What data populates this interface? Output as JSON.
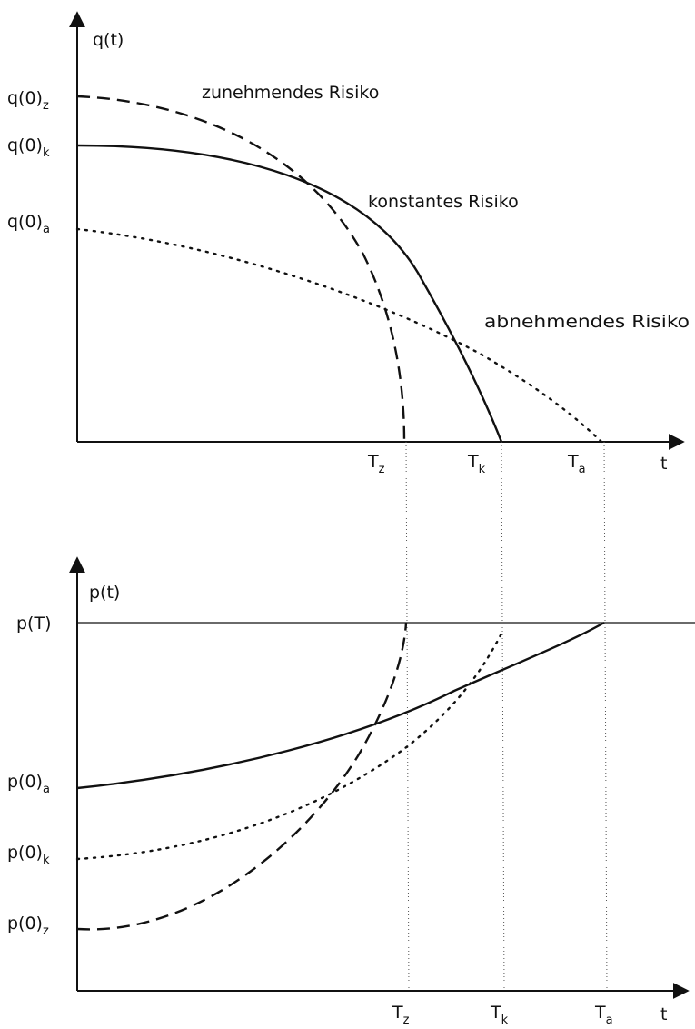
{
  "upper": {
    "y_axis_label": "q(t)",
    "x_axis_label": "t",
    "y_ticks": [
      {
        "main": "q(0)",
        "sub": "z"
      },
      {
        "main": "q(0)",
        "sub": "k"
      },
      {
        "main": "q(0)",
        "sub": "a"
      }
    ],
    "x_ticks": [
      {
        "main": "T",
        "sub": "z"
      },
      {
        "main": "T",
        "sub": "k"
      },
      {
        "main": "T",
        "sub": "a"
      }
    ],
    "curve_labels": {
      "increasing": "zunehmendes Risiko",
      "constant": "konstantes Risiko",
      "decreasing": "abnehmendes Risiko"
    }
  },
  "lower": {
    "y_axis_label": "p(t)",
    "x_axis_label": "t",
    "top_label": "p(T)",
    "y_ticks": [
      {
        "main": "p(0)",
        "sub": "a"
      },
      {
        "main": "p(0)",
        "sub": "k"
      },
      {
        "main": "p(0)",
        "sub": "z"
      }
    ],
    "x_ticks": [
      {
        "main": "T",
        "sub": "z"
      },
      {
        "main": "T",
        "sub": "k"
      },
      {
        "main": "T",
        "sub": "a"
      }
    ]
  },
  "curve_styles": {
    "increasing": "dashed",
    "constant": "solid",
    "decreasing": "dotted"
  },
  "line_color": "#111111"
}
